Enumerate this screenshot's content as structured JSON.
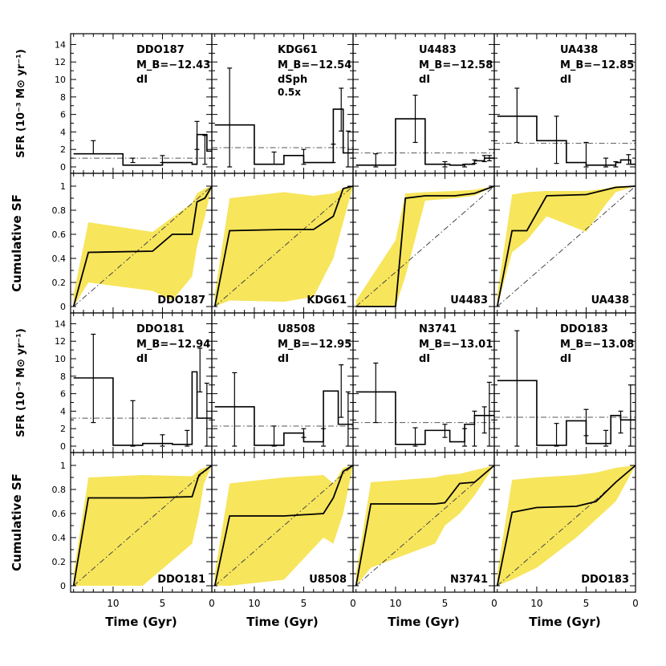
{
  "axes": {
    "time_label": "Time (Gyr)",
    "sfr_label": "SFR (10⁻³ M⊙ yr⁻¹)",
    "cum_label": "Cumulative SF",
    "time_ticks": [
      "10",
      "5",
      "0"
    ],
    "sfr_ticks": [
      "0",
      "2",
      "4",
      "6",
      "8",
      "10",
      "12",
      "14"
    ],
    "cum_ticks": [
      "0",
      "0.2",
      "0.4",
      "0.6",
      "0.8",
      "1"
    ]
  },
  "colors": {
    "uncertainty_band": "#f7e55c",
    "dI": "#0000ff",
    "dSph": "#ff0000",
    "line": "#000000"
  },
  "chart_data": [
    {
      "type": "line",
      "galaxy": "DDO187",
      "mag": "M_B=−12.43",
      "morph": "dI",
      "scale": "",
      "sfr_x": [
        14,
        9,
        5,
        2,
        1.5,
        0.5,
        0
      ],
      "sfr_y": [
        1.5,
        0.2,
        0.5,
        0.3,
        3.7,
        1.8
      ],
      "sfr_err": [
        [
          12,
          1.5,
          3.0
        ],
        [
          8,
          0.5,
          1.0
        ],
        [
          5,
          0.5,
          1.3
        ],
        [
          1.5,
          2.0,
          5.2
        ],
        [
          0.7,
          0.3,
          3.6
        ]
      ],
      "mean_sfr": 1.0,
      "ylim": [
        0,
        14.5
      ],
      "cum_x": [
        14,
        12.5,
        6,
        4,
        2,
        1.5,
        0.7,
        0
      ],
      "cum_y": [
        0,
        0.45,
        0.46,
        0.6,
        0.6,
        0.87,
        0.9,
        1.0
      ],
      "band_upper": [
        0.1,
        0.7,
        0.62,
        0.74,
        0.86,
        0.94,
        0.98,
        1.0
      ],
      "band_lower": [
        0,
        0.2,
        0.13,
        0.05,
        0.25,
        0.5,
        0.75,
        1.0
      ]
    },
    {
      "type": "line",
      "galaxy": "KDG61",
      "mag": "M_B=−12.54",
      "morph": "dSph",
      "scale": "0.5x",
      "sfr_x": [
        14,
        10,
        7,
        5,
        2,
        1,
        0
      ],
      "sfr_y": [
        4.8,
        0.3,
        1.3,
        0.5,
        6.6,
        1.6
      ],
      "sfr_err": [
        [
          12.5,
          0.0,
          11.3
        ],
        [
          8,
          0.3,
          1.7
        ],
        [
          5,
          0.3,
          2.0
        ],
        [
          2,
          0.5,
          2.6
        ],
        [
          1.2,
          4.1,
          9.0
        ],
        [
          0.5,
          0.0,
          4.1
        ]
      ],
      "mean_sfr": 2.2,
      "ylim": [
        0,
        14.5
      ],
      "cum_x": [
        14,
        12.5,
        7,
        4,
        2,
        1,
        0
      ],
      "cum_y": [
        0,
        0.63,
        0.64,
        0.64,
        0.75,
        0.98,
        1.0
      ],
      "band_upper": [
        0.1,
        0.9,
        0.95,
        0.92,
        0.94,
        0.98,
        1.0
      ],
      "band_lower": [
        0,
        0.05,
        0.04,
        0.08,
        0.4,
        0.7,
        1.0
      ]
    },
    {
      "type": "line",
      "galaxy": "U4483",
      "mag": "M_B=−12.58",
      "morph": "dI",
      "scale": "",
      "sfr_x": [
        14,
        10,
        7,
        4.5,
        3,
        2,
        1,
        0
      ],
      "sfr_y": [
        0.2,
        5.5,
        0.3,
        0.2,
        0.3,
        0.7,
        1.0
      ],
      "sfr_err": [
        [
          12,
          0.0,
          1.5
        ],
        [
          8,
          2.8,
          8.2
        ],
        [
          5,
          0.0,
          0.6
        ],
        [
          3,
          0.0,
          0.3
        ],
        [
          2,
          0.4,
          0.8
        ],
        [
          1,
          0.6,
          1.3
        ],
        [
          0.5,
          0.7,
          1.3
        ]
      ],
      "mean_sfr": 1.6,
      "ylim": [
        0,
        14.5
      ],
      "cum_x": [
        14,
        10,
        9,
        7,
        4,
        2,
        0
      ],
      "cum_y": [
        0,
        0,
        0.9,
        0.92,
        0.92,
        0.94,
        1.0
      ],
      "band_upper": [
        0.05,
        0.55,
        0.94,
        0.95,
        0.96,
        0.97,
        1.0
      ],
      "band_lower": [
        0,
        0,
        0.25,
        0.88,
        0.9,
        0.92,
        1.0
      ]
    },
    {
      "type": "line",
      "galaxy": "UA438",
      "mag": "M_B=−12.85",
      "morph": "dI",
      "scale": "",
      "sfr_x": [
        14,
        10,
        7,
        5,
        2,
        1.5,
        0.5,
        0
      ],
      "sfr_y": [
        5.8,
        3.0,
        0.5,
        0.2,
        0.5,
        0.8,
        0.3
      ],
      "sfr_err": [
        [
          12,
          2.8,
          9.0
        ],
        [
          8,
          0.4,
          5.8
        ],
        [
          5,
          0.0,
          2.8
        ],
        [
          3,
          0.0,
          1.0
        ],
        [
          2,
          0.0,
          0.6
        ],
        [
          0.7,
          0.3,
          1.4
        ]
      ],
      "mean_sfr": 2.7,
      "ylim": [
        0,
        14.5
      ],
      "cum_x": [
        14,
        12.5,
        11,
        9,
        5,
        3,
        2,
        0
      ],
      "cum_y": [
        0,
        0.63,
        0.63,
        0.92,
        0.93,
        0.97,
        0.99,
        1.0
      ],
      "band_upper": [
        0.1,
        0.93,
        0.95,
        0.96,
        0.96,
        0.98,
        1.0,
        1.0
      ],
      "band_lower": [
        0,
        0.45,
        0.55,
        0.75,
        0.62,
        0.85,
        0.95,
        1.0
      ]
    },
    {
      "type": "line",
      "galaxy": "DDO181",
      "mag": "M_B=−12.94",
      "morph": "dI",
      "scale": "",
      "sfr_x": [
        14,
        10,
        7,
        4,
        2,
        1.5,
        0.5,
        0
      ],
      "sfr_y": [
        7.8,
        0.1,
        0.3,
        0.2,
        8.5,
        3.2,
        3.2
      ],
      "sfr_err": [
        [
          12,
          2.7,
          12.8
        ],
        [
          8,
          0.0,
          5.2
        ],
        [
          5,
          0.0,
          1.3
        ],
        [
          2.5,
          0.0,
          1.8
        ],
        [
          1.2,
          6.2,
          11.2
        ],
        [
          0.5,
          0.0,
          7.2
        ]
      ],
      "mean_sfr": 3.2,
      "ylim": [
        0,
        14.5
      ],
      "cum_x": [
        14,
        12.5,
        7,
        2,
        1.3,
        0.8,
        0
      ],
      "cum_y": [
        0,
        0.73,
        0.73,
        0.74,
        0.92,
        0.95,
        1.0
      ],
      "band_upper": [
        0.1,
        0.9,
        0.92,
        0.91,
        0.96,
        0.98,
        1.0
      ],
      "band_lower": [
        0,
        0.0,
        0.0,
        0.35,
        0.6,
        0.85,
        1.0
      ]
    },
    {
      "type": "line",
      "galaxy": "U8508",
      "mag": "M_B=−12.95",
      "morph": "dI",
      "scale": "",
      "sfr_x": [
        14,
        10,
        7,
        5,
        3,
        1.5,
        0.8,
        0
      ],
      "sfr_y": [
        4.5,
        0.1,
        1.5,
        0.5,
        6.3,
        2.5,
        2.5
      ],
      "sfr_err": [
        [
          12,
          0.0,
          8.4
        ],
        [
          8,
          0.0,
          2.3
        ],
        [
          5,
          1.0,
          2.0
        ],
        [
          3,
          0.0,
          2.0
        ],
        [
          1.2,
          3.3,
          9.3
        ],
        [
          0.5,
          0.0,
          6.2
        ]
      ],
      "mean_sfr": 2.3,
      "ylim": [
        0,
        14.5
      ],
      "cum_x": [
        14,
        12.5,
        7,
        3,
        2,
        1,
        0
      ],
      "cum_y": [
        0,
        0.58,
        0.58,
        0.6,
        0.73,
        0.95,
        1.0
      ],
      "band_upper": [
        0.1,
        0.85,
        0.9,
        0.92,
        0.85,
        0.98,
        1.0
      ],
      "band_lower": [
        0,
        0.0,
        0.05,
        0.4,
        0.35,
        0.6,
        1.0
      ]
    },
    {
      "type": "line",
      "galaxy": "N3741",
      "mag": "M_B=−13.01",
      "morph": "dI",
      "scale": "",
      "sfr_x": [
        14,
        10,
        7,
        4.5,
        3,
        2,
        1,
        0
      ],
      "sfr_y": [
        6.2,
        0.2,
        1.8,
        0.5,
        2.5,
        3.5,
        3.5
      ],
      "sfr_err": [
        [
          12,
          2.7,
          9.5
        ],
        [
          8,
          0.0,
          2.1
        ],
        [
          5,
          1.0,
          2.5
        ],
        [
          3,
          0.0,
          2.0
        ],
        [
          2,
          0.0,
          4.0
        ],
        [
          1,
          1.5,
          4.5
        ],
        [
          0.5,
          0.0,
          7.3
        ]
      ],
      "mean_sfr": 2.7,
      "ylim": [
        0,
        14.5
      ],
      "cum_x": [
        14,
        12.5,
        6,
        5,
        3.5,
        2,
        0
      ],
      "cum_y": [
        0,
        0.68,
        0.68,
        0.69,
        0.85,
        0.86,
        1.0
      ],
      "band_upper": [
        0.1,
        0.86,
        0.9,
        0.92,
        0.93,
        0.96,
        1.0
      ],
      "band_lower": [
        0,
        0.15,
        0.35,
        0.5,
        0.6,
        0.75,
        1.0
      ]
    },
    {
      "type": "line",
      "galaxy": "DDO183",
      "mag": "M_B=−13.08",
      "morph": "dI",
      "scale": "",
      "sfr_x": [
        14,
        10,
        7,
        5,
        2.5,
        1.5,
        0.8,
        0
      ],
      "sfr_y": [
        7.5,
        0.1,
        2.9,
        0.3,
        3.5,
        3.0,
        3.0
      ],
      "sfr_err": [
        [
          12,
          0.0,
          13.2
        ],
        [
          8,
          0.0,
          2.6
        ],
        [
          5,
          1.2,
          4.2
        ],
        [
          3,
          0.0,
          1.8
        ],
        [
          1.5,
          1.5,
          4.0
        ],
        [
          0.5,
          0.0,
          7.0
        ]
      ],
      "mean_sfr": 3.3,
      "ylim": [
        0,
        14.5
      ],
      "cum_x": [
        14,
        12.5,
        10,
        6,
        4,
        2,
        0
      ],
      "cum_y": [
        0,
        0.61,
        0.65,
        0.66,
        0.7,
        0.86,
        1.0
      ],
      "band_upper": [
        0.1,
        0.88,
        0.9,
        0.92,
        0.94,
        0.98,
        1.0
      ],
      "band_lower": [
        0,
        0.05,
        0.15,
        0.4,
        0.55,
        0.7,
        1.0
      ]
    }
  ]
}
